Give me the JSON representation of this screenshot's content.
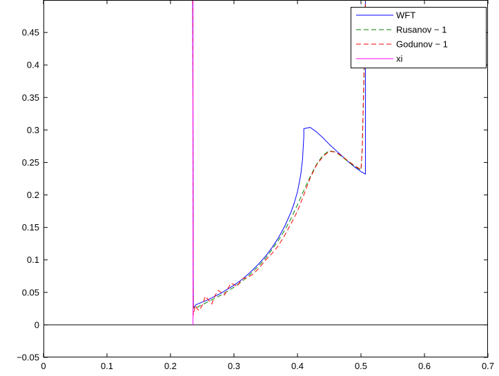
{
  "chart_data": {
    "type": "line",
    "title": "",
    "xlabel": "",
    "ylabel": "",
    "xlim": [
      0,
      0.7
    ],
    "ylim": [
      -0.05,
      0.5
    ],
    "xticks": [
      0,
      0.1,
      0.2,
      0.3,
      0.4,
      0.5,
      0.6,
      0.7
    ],
    "xtick_labels": [
      "0",
      "0.1",
      "0.2",
      "0.3",
      "0.4",
      "0.5",
      "0.6",
      "0.7"
    ],
    "yticks": [
      -0.05,
      0,
      0.05,
      0.1,
      0.15,
      0.2,
      0.25,
      0.3,
      0.35,
      0.4,
      0.45
    ],
    "ytick_labels": [
      "−0.05",
      "0",
      "0.05",
      "0.1",
      "0.15",
      "0.2",
      "0.25",
      "0.3",
      "0.35",
      "0.4",
      "0.45"
    ],
    "grid": false,
    "legend_position": "top-right",
    "zero_line": true,
    "series": [
      {
        "name": "WFT",
        "color": "#0000ff",
        "style": "solid",
        "x": [
          0.235,
          0.235,
          0.236,
          0.236,
          0.238,
          0.24,
          0.25,
          0.26,
          0.27,
          0.28,
          0.29,
          0.3,
          0.31,
          0.32,
          0.33,
          0.34,
          0.35,
          0.36,
          0.37,
          0.38,
          0.39,
          0.395,
          0.4,
          0.405,
          0.408,
          0.41,
          0.41,
          0.42,
          0.43,
          0.44,
          0.45,
          0.46,
          0.47,
          0.48,
          0.49,
          0.5,
          0.507,
          0.507
        ],
        "y": [
          0.5,
          0.5,
          0.03,
          0.027,
          0.028,
          0.031,
          0.035,
          0.039,
          0.044,
          0.049,
          0.055,
          0.061,
          0.068,
          0.076,
          0.085,
          0.095,
          0.106,
          0.119,
          0.134,
          0.152,
          0.174,
          0.188,
          0.205,
          0.23,
          0.255,
          0.29,
          0.302,
          0.304,
          0.297,
          0.288,
          0.278,
          0.269,
          0.26,
          0.251,
          0.243,
          0.236,
          0.232,
          0.5
        ]
      },
      {
        "name": "Rusanov − 1",
        "color": "#008000",
        "style": "dashed",
        "x": [
          0.235,
          0.235,
          0.236,
          0.237,
          0.24,
          0.25,
          0.26,
          0.27,
          0.28,
          0.29,
          0.3,
          0.31,
          0.32,
          0.33,
          0.34,
          0.35,
          0.36,
          0.37,
          0.38,
          0.39,
          0.4,
          0.41,
          0.42,
          0.43,
          0.44,
          0.45,
          0.46,
          0.47,
          0.48,
          0.49,
          0.5,
          0.502,
          0.505,
          0.507
        ],
        "y": [
          0.5,
          0.49,
          0.03,
          0.026,
          0.026,
          0.031,
          0.036,
          0.041,
          0.046,
          0.052,
          0.058,
          0.065,
          0.073,
          0.082,
          0.092,
          0.103,
          0.116,
          0.13,
          0.146,
          0.164,
          0.185,
          0.207,
          0.228,
          0.247,
          0.261,
          0.268,
          0.266,
          0.259,
          0.251,
          0.244,
          0.238,
          0.27,
          0.39,
          0.5
        ]
      },
      {
        "name": "Godunov − 1",
        "color": "#ff0000",
        "style": "dashed",
        "x": [
          0.235,
          0.235,
          0.236,
          0.237,
          0.239,
          0.242,
          0.245,
          0.25,
          0.255,
          0.26,
          0.265,
          0.27,
          0.275,
          0.28,
          0.285,
          0.29,
          0.295,
          0.3,
          0.305,
          0.31,
          0.315,
          0.32,
          0.33,
          0.34,
          0.35,
          0.36,
          0.37,
          0.38,
          0.39,
          0.4,
          0.41,
          0.42,
          0.43,
          0.44,
          0.45,
          0.46,
          0.47,
          0.48,
          0.49,
          0.5,
          0.502,
          0.505,
          0.507
        ],
        "y": [
          0.5,
          0.49,
          0.015,
          0.02,
          0.03,
          0.025,
          0.022,
          0.03,
          0.044,
          0.038,
          0.032,
          0.045,
          0.053,
          0.05,
          0.046,
          0.055,
          0.064,
          0.062,
          0.059,
          0.067,
          0.072,
          0.072,
          0.078,
          0.088,
          0.1,
          0.11,
          0.122,
          0.138,
          0.156,
          0.175,
          0.2,
          0.226,
          0.246,
          0.259,
          0.267,
          0.266,
          0.26,
          0.252,
          0.245,
          0.239,
          0.27,
          0.4,
          0.5
        ]
      },
      {
        "name": "xi",
        "color": "#ff00ff",
        "style": "solid",
        "x": [
          0.2355,
          0.2355
        ],
        "y": [
          0.0,
          0.5
        ]
      }
    ]
  }
}
